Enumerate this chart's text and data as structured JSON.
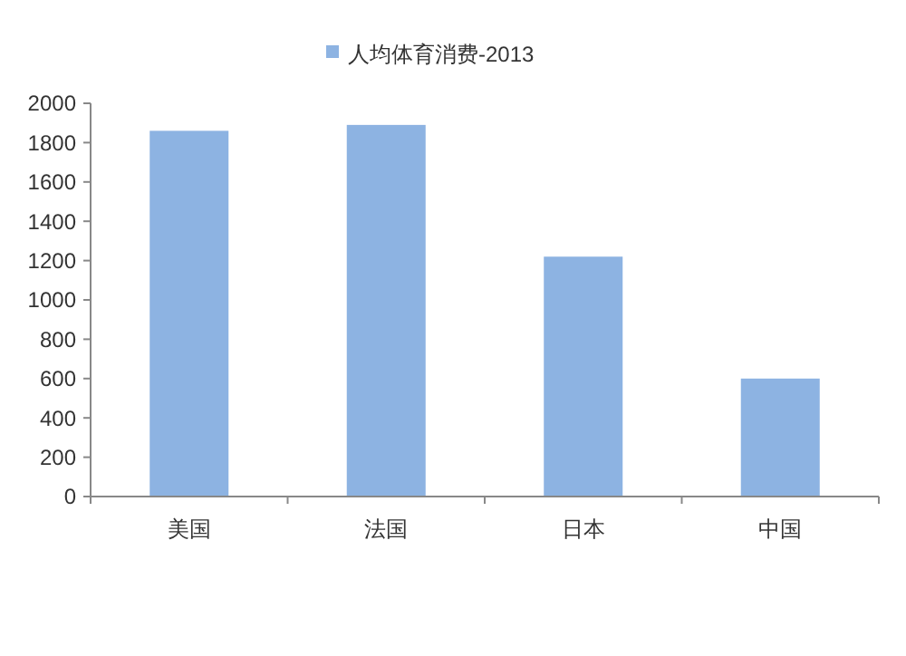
{
  "chart_data": {
    "type": "bar",
    "categories": [
      "美国",
      "法国",
      "日本",
      "中国"
    ],
    "series": [
      {
        "name": "人均体育消费-2013",
        "color": "#8db3e2",
        "values": [
          1860,
          1890,
          1220,
          600
        ]
      }
    ],
    "ylim": [
      0,
      2000
    ],
    "yticks": [
      0,
      200,
      400,
      600,
      800,
      1000,
      1200,
      1400,
      1600,
      1800,
      2000
    ],
    "grid": false,
    "legend": "top"
  }
}
